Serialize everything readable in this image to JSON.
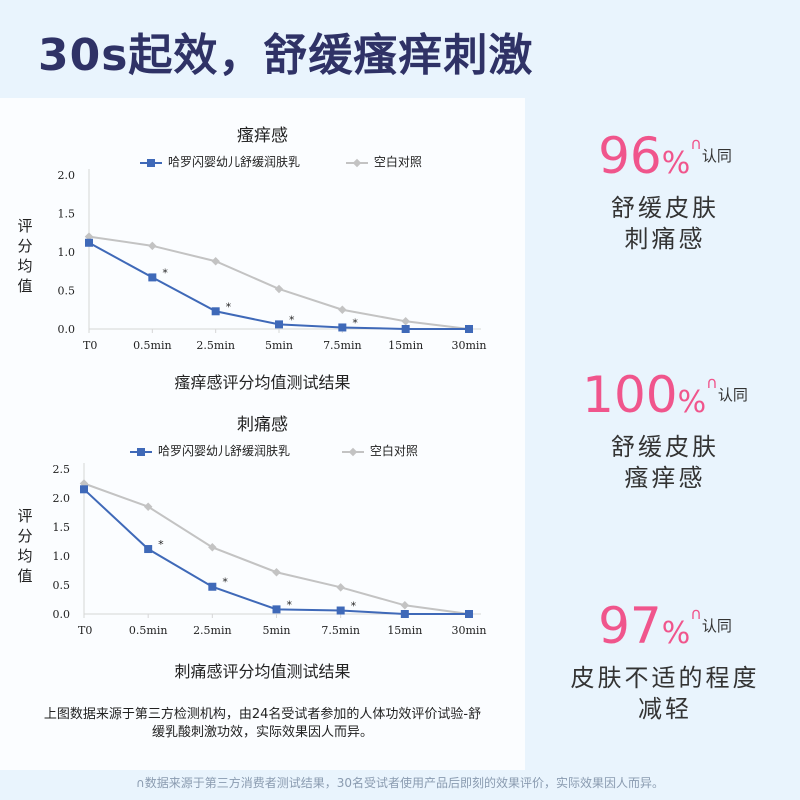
{
  "headline": "30s起效，舒缓瘙痒刺激",
  "chart_data": [
    {
      "type": "line",
      "title": "瘙痒感",
      "xlabel": "瘙痒感评分均值测试结果",
      "ylabel": "评分均值",
      "categories": [
        "T0",
        "0.5min",
        "2.5min",
        "5min",
        "7.5min",
        "15min",
        "30min"
      ],
      "ylim": [
        0,
        2.0
      ],
      "yticks": [
        "0.0",
        "0.5",
        "1.0",
        "1.5",
        "2.0"
      ],
      "legend": "top",
      "series": [
        {
          "name": "哈罗闪婴幼儿舒缓润肤乳",
          "values": [
            1.12,
            0.67,
            0.23,
            0.06,
            0.02,
            0.0,
            0.0
          ],
          "color": "#3f69b8",
          "marker": "square",
          "annotations": [
            "",
            "*",
            "*",
            "*",
            "*",
            "",
            ""
          ]
        },
        {
          "name": "空白对照",
          "values": [
            1.2,
            1.08,
            0.88,
            0.52,
            0.25,
            0.1,
            0.0
          ],
          "color": "#c3c3c3",
          "marker": "diamond",
          "annotations": [
            "",
            "",
            "",
            "",
            "",
            "",
            ""
          ]
        }
      ]
    },
    {
      "type": "line",
      "title": "刺痛感",
      "xlabel": "刺痛感评分均值测试结果",
      "ylabel": "评分均值",
      "categories": [
        "T0",
        "0.5min",
        "2.5min",
        "5min",
        "7.5min",
        "15min",
        "30min"
      ],
      "ylim": [
        0,
        2.5
      ],
      "yticks": [
        "0.0",
        "0.5",
        "1.0",
        "1.5",
        "2.0",
        "2.5"
      ],
      "legend": "top",
      "series": [
        {
          "name": "哈罗闪婴幼儿舒缓润肤乳",
          "values": [
            2.15,
            1.12,
            0.47,
            0.08,
            0.06,
            0.0,
            0.0
          ],
          "color": "#3f69b8",
          "marker": "square",
          "annotations": [
            "",
            "*",
            "*",
            "*",
            "*",
            "",
            ""
          ]
        },
        {
          "name": "空白对照",
          "values": [
            2.25,
            1.85,
            1.15,
            0.72,
            0.46,
            0.15,
            0.0
          ],
          "color": "#c3c3c3",
          "marker": "diamond",
          "annotations": [
            "",
            "",
            "",
            "",
            "",
            "",
            ""
          ]
        }
      ]
    }
  ],
  "note": "上图数据来源于第三方检测机构，由24名受试者参加的人体功效评价试验-舒缓乳酸刺激功效，实际效果因人而异。",
  "stats": [
    {
      "number": "96",
      "percent": "%",
      "mark": "∩",
      "agree": "认同",
      "line1": "舒缓皮肤",
      "line2": "刺痛感"
    },
    {
      "number": "100",
      "percent": "%",
      "mark": "∩",
      "agree": "认同",
      "line1": "舒缓皮肤",
      "line2": "瘙痒感"
    },
    {
      "number": "97",
      "percent": "%",
      "mark": "∩",
      "agree": "认同",
      "line1": "皮肤不适的程度",
      "line2": "减轻"
    }
  ],
  "footnote": "∩数据来源于第三方消费者测试结果，30名受试者使用产品后即刻的效果评价，实际效果因人而异。",
  "colors": {
    "headline": "#2f3266",
    "accent": "#f0558c",
    "series_blue": "#3f69b8",
    "series_gray": "#c3c3c3",
    "background": "#e9f4fd"
  }
}
